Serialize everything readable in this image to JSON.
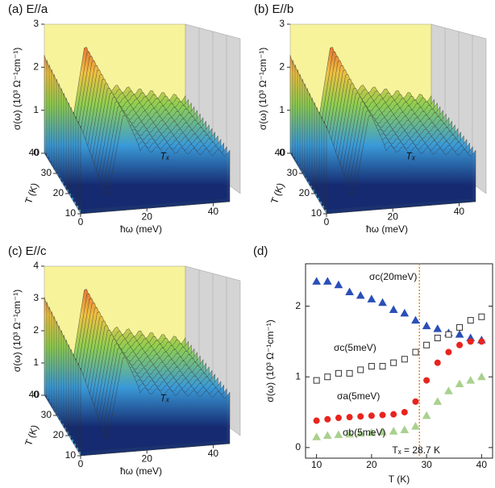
{
  "chart_data": [
    {
      "type": "surface3d",
      "title": "(a) E//a",
      "zlabel": "σ(ω) (10³ Ω⁻¹cm⁻¹)",
      "ylabel": "T (K)",
      "xlabel": "ħω (meV)",
      "zlim": [
        0,
        3
      ],
      "zticks": [
        0,
        1,
        2,
        3
      ],
      "ylim": [
        10,
        40
      ],
      "yticks": [
        10,
        20,
        30,
        40
      ],
      "xlim": [
        0,
        45
      ],
      "xticks": [
        0,
        20,
        40
      ],
      "annotation": "Tₓ"
    },
    {
      "type": "surface3d",
      "title": "(b) E//b",
      "zlabel": "σ(ω) (10³ Ω⁻¹cm⁻¹)",
      "ylabel": "T (K)",
      "xlabel": "ħω (meV)",
      "zlim": [
        0,
        3
      ],
      "zticks": [
        0,
        1,
        2,
        3
      ],
      "ylim": [
        10,
        40
      ],
      "yticks": [
        10,
        20,
        30,
        40
      ],
      "xlim": [
        0,
        45
      ],
      "xticks": [
        0,
        20,
        40
      ],
      "annotation": "Tₓ"
    },
    {
      "type": "surface3d",
      "title": "(c) E//c",
      "zlabel": "σ(ω) (10³ Ω⁻¹cm⁻¹)",
      "ylabel": "T (K)",
      "xlabel": "ħω (meV)",
      "zlim": [
        0,
        4
      ],
      "zticks": [
        0,
        1,
        2,
        3,
        4
      ],
      "ylim": [
        10,
        40
      ],
      "yticks": [
        10,
        20,
        30,
        40
      ],
      "xlim": [
        0,
        45
      ],
      "xticks": [
        0,
        20,
        40
      ],
      "annotation": "Tₓ"
    },
    {
      "type": "scatter",
      "title": "(d)",
      "xlabel": "T (K)",
      "ylabel": "σ(ω) (10³ Ω⁻¹cm⁻¹)",
      "x": [
        10,
        12,
        14,
        16,
        18,
        20,
        22,
        24,
        26,
        28,
        30,
        32,
        34,
        36,
        38,
        40
      ],
      "xlim": [
        8,
        42
      ],
      "xticks": [
        10,
        20,
        30,
        40
      ],
      "ylim": [
        -0.15,
        2.6
      ],
      "yticks": [
        0,
        1,
        2
      ],
      "series": [
        {
          "name": "σc(20meV)",
          "color": "#2b4fb8",
          "marker": "triangle",
          "values": [
            2.35,
            2.35,
            2.3,
            2.2,
            2.15,
            2.1,
            2.05,
            1.95,
            1.9,
            1.8,
            1.72,
            1.68,
            1.62,
            1.6,
            1.55,
            1.52
          ]
        },
        {
          "name": "σc(5meV)",
          "color": "#333333",
          "marker": "square",
          "values": [
            0.95,
            1.0,
            1.05,
            1.05,
            1.1,
            1.15,
            1.15,
            1.2,
            1.25,
            1.35,
            1.45,
            1.55,
            1.6,
            1.7,
            1.8,
            1.85
          ]
        },
        {
          "name": "σa(5meV)",
          "color": "#e8241e",
          "marker": "circle",
          "values": [
            0.38,
            0.4,
            0.42,
            0.43,
            0.44,
            0.45,
            0.46,
            0.47,
            0.5,
            0.65,
            0.95,
            1.2,
            1.35,
            1.45,
            1.5,
            1.5
          ]
        },
        {
          "name": "σb(5meV)",
          "color": "#a9d18e",
          "marker": "triangle",
          "values": [
            0.15,
            0.17,
            0.18,
            0.19,
            0.2,
            0.21,
            0.22,
            0.23,
            0.25,
            0.3,
            0.45,
            0.65,
            0.8,
            0.9,
            0.95,
            1.0
          ]
        }
      ],
      "vline": 28.7,
      "vline_color": "#f08a1c",
      "annotation": "Tₓ = 28.7 K"
    }
  ]
}
